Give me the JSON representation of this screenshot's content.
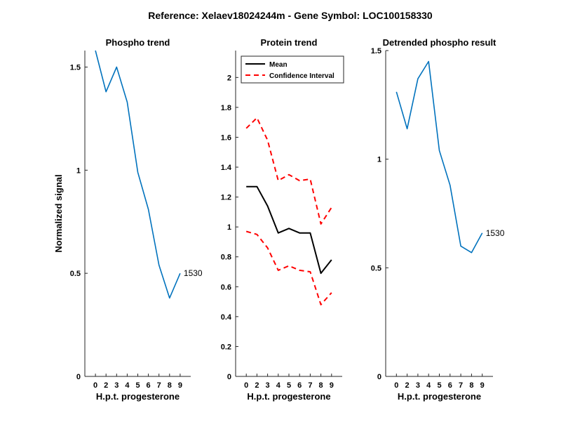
{
  "figure": {
    "suptitle": "Reference:  Xelaev18024244m - Gene Symbol:  LOC100158330"
  },
  "chart_data": [
    {
      "type": "line",
      "title": "Phospho trend",
      "xlabel": "H.p.t. progesterone",
      "ylabel": "Normalized signal",
      "x_ticklabels": [
        "0",
        "2",
        "3",
        "4",
        "5",
        "6",
        "7",
        "8",
        "9"
      ],
      "ylim": [
        0,
        1.58
      ],
      "yticks": [
        0,
        0.5,
        1,
        1.5
      ],
      "ytick_labels": [
        "0",
        "0.5",
        "1",
        "1.5"
      ],
      "series": [
        {
          "color": "#0072BD",
          "values": [
            1.58,
            1.38,
            1.5,
            1.33,
            0.99,
            0.81,
            0.54,
            0.38,
            0.5
          ]
        }
      ],
      "annotation": {
        "text": "1530",
        "at_index": 8
      }
    },
    {
      "type": "line",
      "title": "Protein trend",
      "xlabel": "H.p.t. progesterone",
      "ylabel": "",
      "x_ticklabels": [
        "0",
        "2",
        "3",
        "4",
        "5",
        "6",
        "7",
        "8",
        "9"
      ],
      "ylim": [
        0,
        2.18
      ],
      "yticks": [
        0,
        0.2,
        0.4,
        0.6,
        0.8,
        1,
        1.2,
        1.4,
        1.6,
        1.8,
        2
      ],
      "ytick_labels": [
        "0",
        "0.2",
        "0.4",
        "0.6",
        "0.8",
        "1",
        "1.2",
        "1.4",
        "1.6",
        "1.8",
        "2"
      ],
      "legend": {
        "placement": "top-left"
      },
      "series": [
        {
          "name": "Mean",
          "color": "#000000",
          "dash": "solid",
          "values": [
            1.27,
            1.27,
            1.14,
            0.96,
            0.99,
            0.96,
            0.96,
            0.69,
            0.78
          ]
        },
        {
          "name": "Confidence Interval",
          "color": "#FF0000",
          "dash": "dashed",
          "values": [
            1.66,
            1.73,
            1.58,
            1.31,
            1.35,
            1.31,
            1.32,
            1.02,
            1.13
          ]
        },
        {
          "name": "",
          "color": "#FF0000",
          "dash": "dashed",
          "values": [
            0.97,
            0.95,
            0.86,
            0.71,
            0.74,
            0.71,
            0.7,
            0.48,
            0.56
          ]
        }
      ]
    },
    {
      "type": "line",
      "title": "Detrended phospho result",
      "xlabel": "H.p.t. progesterone",
      "ylabel": "",
      "x_ticklabels": [
        "0",
        "2",
        "3",
        "4",
        "5",
        "6",
        "7",
        "8",
        "9"
      ],
      "ylim": [
        0,
        1.5
      ],
      "yticks": [
        0,
        0.5,
        1,
        1.5
      ],
      "ytick_labels": [
        "0",
        "0.5",
        "1",
        "1.5"
      ],
      "series": [
        {
          "color": "#0072BD",
          "values": [
            1.31,
            1.14,
            1.37,
            1.45,
            1.04,
            0.88,
            0.6,
            0.57,
            0.66
          ]
        }
      ],
      "annotation": {
        "text": "1530",
        "at_index": 8
      }
    }
  ]
}
